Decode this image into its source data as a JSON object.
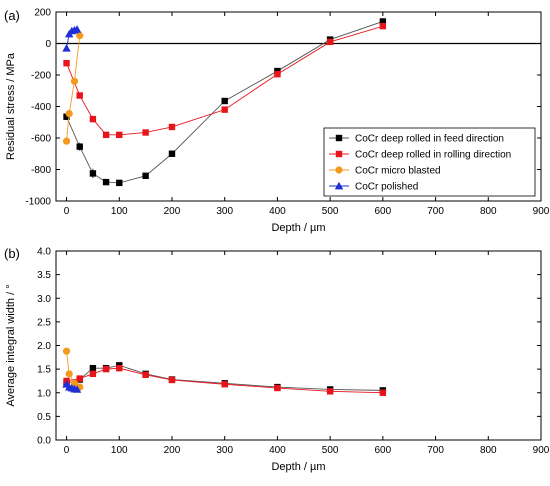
{
  "colors": {
    "feed": "#000000",
    "rolling": "#e8141c",
    "micro": "#f39a1e",
    "polished": "#1e2fd6",
    "feed_line": "#555555",
    "rolling_line": "#e8141c",
    "micro_line": "#f39a1e",
    "polished_line": "#1e2fd6"
  },
  "chart_data": [
    {
      "type": "line",
      "panel_label": "(a)",
      "xlabel": "Depth / µm",
      "ylabel": "Residual stress / MPa",
      "xlim": [
        -20,
        900
      ],
      "ylim": [
        -1000,
        200
      ],
      "xticks": [
        0,
        100,
        200,
        300,
        400,
        500,
        600,
        700,
        800,
        900
      ],
      "yticks": [
        -1000,
        -800,
        -600,
        -400,
        -200,
        0,
        200
      ],
      "zero_line": true,
      "grid": false,
      "legend_position": "right-middle",
      "series": [
        {
          "name": "CoCr deep rolled in feed direction",
          "marker": "square",
          "color_key": "feed",
          "x": [
            0,
            25,
            50,
            75,
            100,
            150,
            200,
            300,
            400,
            500,
            600
          ],
          "y": [
            -465,
            -655,
            -825,
            -880,
            -885,
            -840,
            -700,
            -365,
            -175,
            25,
            140
          ],
          "err": [
            20,
            25,
            30,
            15,
            15,
            15,
            10,
            10,
            10,
            10,
            10
          ]
        },
        {
          "name": "CoCr deep rolled in rolling direction",
          "marker": "square",
          "color_key": "rolling",
          "x": [
            0,
            25,
            50,
            75,
            100,
            150,
            200,
            300,
            400,
            500,
            600
          ],
          "y": [
            -125,
            -330,
            -480,
            -580,
            -580,
            -565,
            -530,
            -420,
            -195,
            10,
            110
          ],
          "err": [
            10,
            10,
            10,
            10,
            10,
            10,
            10,
            10,
            10,
            10,
            10
          ]
        },
        {
          "name": "CoCr micro blasted",
          "marker": "circle",
          "color_key": "micro",
          "x": [
            0,
            5,
            15,
            25
          ],
          "y": [
            -620,
            -445,
            -240,
            50
          ],
          "err": [
            20,
            15,
            15,
            10
          ]
        },
        {
          "name": "CoCr polished",
          "marker": "triangle",
          "color_key": "polished",
          "x": [
            0,
            5,
            10,
            15,
            20
          ],
          "y": [
            -30,
            60,
            80,
            85,
            90
          ],
          "err": [
            10,
            10,
            10,
            10,
            10
          ]
        }
      ]
    },
    {
      "type": "line",
      "panel_label": "(b)",
      "xlabel": "Depth / µm",
      "ylabel": "Average integral width / °",
      "xlim": [
        -20,
        900
      ],
      "ylim": [
        0,
        4
      ],
      "xticks": [
        0,
        100,
        200,
        300,
        400,
        500,
        600,
        700,
        800,
        900
      ],
      "yticks": [
        0.0,
        0.5,
        1.0,
        1.5,
        2.0,
        2.5,
        3.0,
        3.5,
        4.0
      ],
      "grid": false,
      "series": [
        {
          "marker": "square",
          "color_key": "feed",
          "x": [
            0,
            25,
            50,
            75,
            100,
            150,
            200,
            300,
            400,
            500,
            600
          ],
          "y": [
            1.2,
            1.28,
            1.52,
            1.52,
            1.58,
            1.4,
            1.28,
            1.2,
            1.12,
            1.07,
            1.05
          ]
        },
        {
          "marker": "square",
          "color_key": "rolling",
          "x": [
            0,
            25,
            50,
            75,
            100,
            150,
            200,
            300,
            400,
            500,
            600
          ],
          "y": [
            1.25,
            1.3,
            1.4,
            1.5,
            1.52,
            1.38,
            1.27,
            1.18,
            1.1,
            1.03,
            1.0
          ]
        },
        {
          "marker": "circle",
          "color_key": "micro",
          "x": [
            0,
            5,
            15,
            25
          ],
          "y": [
            1.88,
            1.4,
            1.2,
            1.12
          ]
        },
        {
          "marker": "triangle",
          "color_key": "polished",
          "x": [
            0,
            5,
            10,
            15,
            20
          ],
          "y": [
            1.18,
            1.12,
            1.1,
            1.08,
            1.07
          ]
        }
      ]
    }
  ]
}
